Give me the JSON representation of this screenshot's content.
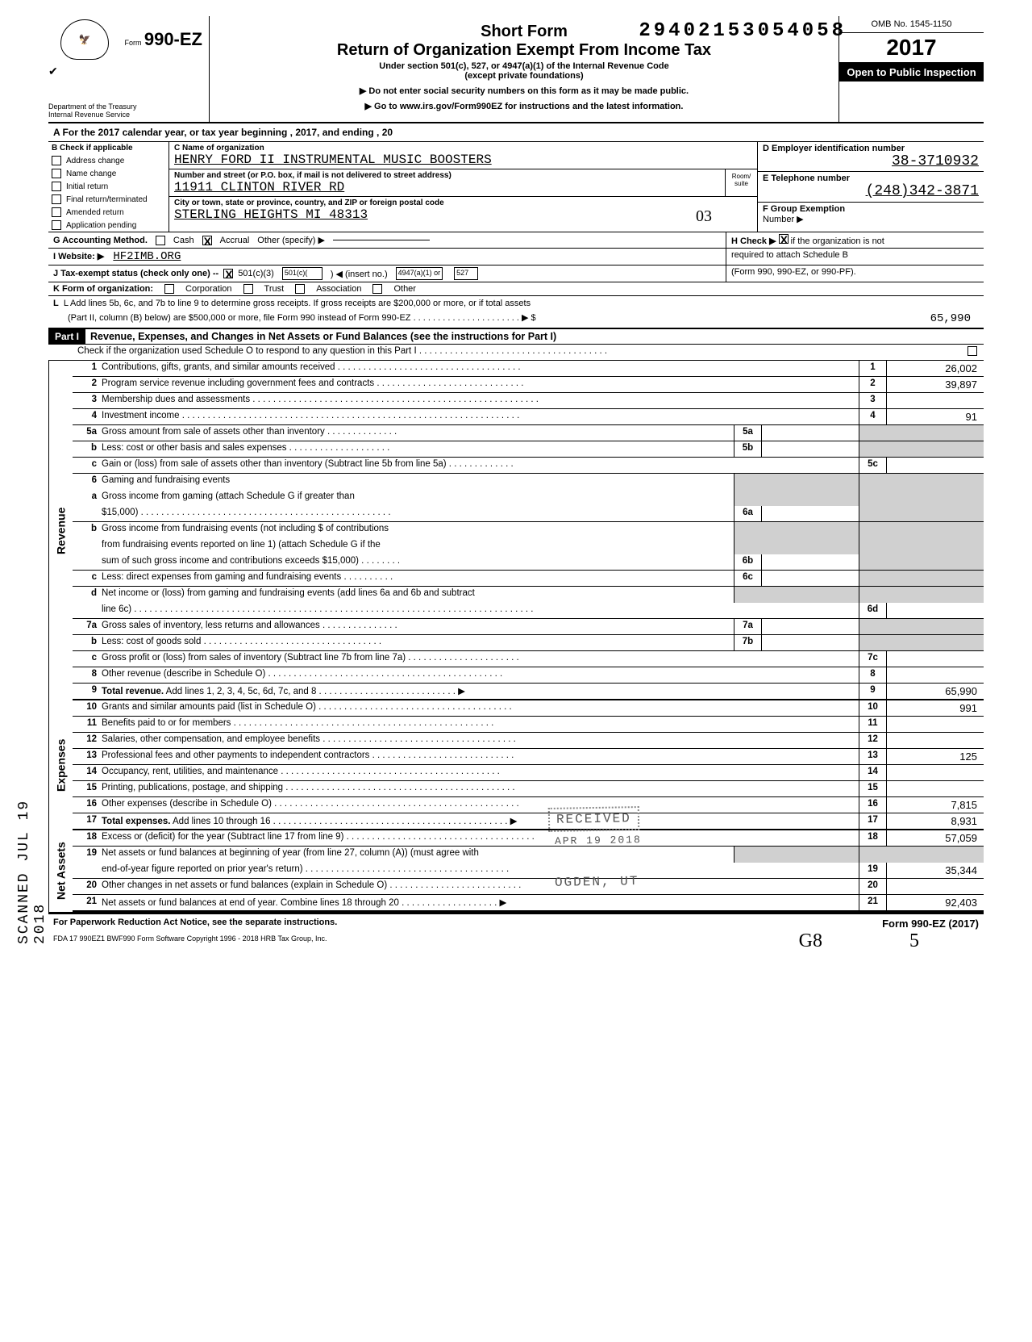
{
  "dln": "29402153054058",
  "header": {
    "form_no": "990-EZ",
    "form_prefix": "Form",
    "dept1": "Department of the Treasury",
    "dept2": "Internal Revenue Service",
    "title1": "Short Form",
    "title2": "Return of Organization Exempt From Income Tax",
    "sub": "Under section 501(c), 527, or 4947(a)(1) of the Internal Revenue Code",
    "sub2": "(except private foundations)",
    "warn1": "▶ Do not enter social security numbers on this form as it may be made public.",
    "warn2": "▶ Go to www.irs.gov/Form990EZ for instructions and the latest information.",
    "omb": "OMB No. 1545-1150",
    "year": "2017",
    "open": "Open to Public Inspection"
  },
  "lineA": "A   For the 2017 calendar year, or tax year beginning                                             , 2017, and ending                                           , 20",
  "boxB": {
    "hdr": "B  Check if applicable",
    "items": [
      "Address change",
      "Name change",
      "Initial return",
      "Final return/terminated",
      "Amended return",
      "Application pending"
    ]
  },
  "boxC": {
    "label_name": "C  Name of organization",
    "name": "HENRY FORD II INSTRUMENTAL MUSIC BOOSTERS",
    "label_addr": "Number and street (or P.O. box, if mail is not delivered to street address)",
    "room": "Room/\nsuite",
    "addr": "11911 CLINTON RIVER RD",
    "label_city": "City or town, state or province, country, and ZIP or foreign postal code",
    "city": "STERLING HEIGHTS MI 48313",
    "city_suffix": "03"
  },
  "boxD": {
    "label": "D  Employer identification number",
    "val": "38-3710932"
  },
  "boxE": {
    "label": "E  Telephone number",
    "val": "(248)342-3871"
  },
  "boxF": {
    "label": "F  Group Exemption",
    "label2": "Number  ▶"
  },
  "lineG": {
    "label": "G  Accounting Method.",
    "cash": "Cash",
    "accrual": "Accrual",
    "other": "Other (specify) ▶"
  },
  "lineH": {
    "text": "H  Check ▶",
    "text2": "if the organization is not",
    "text3": "required to attach Schedule B",
    "text4": "(Form 990, 990-EZ, or 990-PF)."
  },
  "lineI": {
    "label": "I   Website: ▶",
    "val": "HF2IMB.ORG"
  },
  "lineJ": {
    "label": "J   Tax-exempt status (check only one) --",
    "opts": [
      "501(c)(3)",
      "501(c)(",
      "4947(a)(1) or",
      "527"
    ],
    "insert": ")  ◀ (insert no.)"
  },
  "lineK": {
    "label": "K  Form of organization:",
    "opts": [
      "Corporation",
      "Trust",
      "Association",
      "Other"
    ]
  },
  "lineL": {
    "text1": "L   Add lines 5b, 6c, and 7b to line 9 to determine gross receipts. If gross receipts are $200,000 or more, or if total assets",
    "text2": "(Part II, column (B) below) are $500,000 or more, file Form 990 instead of Form 990-EZ . . . . . . . . . . . . . . . . . . . . . .  ▶   $",
    "val": "65,990"
  },
  "part1": {
    "hdr": "Part I",
    "title": "Revenue, Expenses, and Changes in Net Assets or Fund Balances (see the instructions for Part I)",
    "check_line": "Check if the organization used Schedule O to respond to any question in this Part I . . . . . . . . . . . . . . . . . . . . . . . . . . . . . . . . . . . . ."
  },
  "sections": [
    {
      "label": "Revenue",
      "lines": [
        {
          "n": "1",
          "d": "Contributions, gifts, grants, and similar amounts received . . . . . . . . . . . . . . . . . . . . . . . . . . . . . . . . . . . .",
          "en": "1",
          "ev": "26,002"
        },
        {
          "n": "2",
          "d": "Program service revenue including government fees and contracts . . . . . . . . . . . . . . . . . . . . . . . . . . . . .",
          "en": "2",
          "ev": "39,897"
        },
        {
          "n": "3",
          "d": "Membership dues and assessments . . . . . . . . . . . . . . . . . . . . . . . . . . . . . . . . . .  . . . . . . . . . . . . . . . . . . . . . .",
          "en": "3",
          "ev": ""
        },
        {
          "n": "4",
          "d": "Investment income . . . . . . . . . . . . . . . . . . . . . . . . . . . . . . . . .  . . . . . . . . .  . . . . . . . . . . . . . . . . . . . . . . . .",
          "en": "4",
          "ev": "91"
        },
        {
          "n": "5a",
          "d": "Gross amount from sale of assets other than inventory . . . . . . .  . . . . . . .",
          "mn": "5a",
          "mv": "",
          "shade_end": true
        },
        {
          "n": "b",
          "d": "Less: cost or other basis and sales expenses . . . . . . . . . . . .  . . . . . . . .",
          "mn": "5b",
          "mv": "",
          "shade_end": true
        },
        {
          "n": "c",
          "d": "Gain or (loss) from sale of assets other than inventory (Subtract line 5b from line 5a) . . .  . . . .  . . . . . .",
          "en": "5c",
          "ev": ""
        },
        {
          "n": "6",
          "d": "Gaming and fundraising events",
          "shade_end": true,
          "shade_mid": true,
          "no_border": true
        },
        {
          "n": "a",
          "d": "Gross income from gaming (attach Schedule G if greater than",
          "shade_end": true,
          "shade_mid": true,
          "no_border": true
        },
        {
          "n": "",
          "d": "$15,000) . . . . . . .  . . . .  . . . . . . . . . . . . . . . . . . . . . .  . . . . . . . . . . . . . . . .",
          "mn": "6a",
          "mv": "",
          "shade_end": true
        },
        {
          "n": "b",
          "d": "Gross income from fundraising events (not including   $                             of contributions",
          "shade_end": true,
          "shade_mid": true,
          "no_border": true
        },
        {
          "n": "",
          "d": "from fundraising events reported on line 1) (attach Schedule G if the",
          "shade_end": true,
          "shade_mid": true,
          "no_border": true
        },
        {
          "n": "",
          "d": "sum of such gross income and contributions exceeds $15,000) . . . . . . . .",
          "mn": "6b",
          "mv": "",
          "shade_end": true
        },
        {
          "n": "c",
          "d": "Less: direct expenses from gaming and fundraising events  . . . . . . . . . .",
          "mn": "6c",
          "mv": "",
          "shade_end": true
        },
        {
          "n": "d",
          "d": "Net income or (loss) from gaming and fundraising events (add lines 6a and 6b and subtract",
          "shade_end": true,
          "shade_mid": true,
          "no_border": true
        },
        {
          "n": "",
          "d": "line 6c) . . . . . . . . .  . . . .  . . . . . . . . . . . . . . . . . . . . . . . . . . . . . . . . . .  . . . . . . . . . . . . . . . . . . . . . . . . . . . . . . .",
          "en": "6d",
          "ev": ""
        },
        {
          "n": "7a",
          "d": "Gross sales of inventory, less returns and allowances . . . . . . . . . . . . . . .",
          "mn": "7a",
          "mv": "",
          "shade_end": true
        },
        {
          "n": "b",
          "d": "Less: cost of goods sold . . . . .  . . . .  . . .  . . . . . . .  . . . . . . . . .  . . . . . . .",
          "mn": "7b",
          "mv": "",
          "shade_end": true
        },
        {
          "n": "c",
          "d": "Gross profit or (loss) from sales of inventory (Subtract line 7b from line 7a) . . .  . . . . . . . . . . . . . . . .  . . .",
          "en": "7c",
          "ev": ""
        },
        {
          "n": "8",
          "d": "Other revenue (describe in Schedule O)  . . . . . .   . . .  . . . .  . . . .   . . . . . .  . . . . . .  . . . . . . . . . . . . . . . . .",
          "en": "8",
          "ev": ""
        },
        {
          "n": "9",
          "d": "Total revenue. Add lines 1, 2, 3, 4, 5c, 6d, 7c, and 8 . . .  . . . . . . .   . . .  . . . . . .  . . .  . . . . .  ▶",
          "en": "9",
          "ev": "65,990",
          "bold": true,
          "thick": true
        }
      ]
    },
    {
      "label": "Expenses",
      "lines": [
        {
          "n": "10",
          "d": "Grants and similar amounts paid (list in Schedule O) . . . . . .  . . . . . .  . . . . . . . . . . . . . . . . . . . . . . . . . .",
          "en": "10",
          "ev": "991"
        },
        {
          "n": "11",
          "d": "Benefits paid to or for members . . .  . . .  . . . .  . . .  . . . .   . .  . . . . . . . . . . . . . . . . . . . . . . . . . . . . . . . .",
          "en": "11",
          "ev": ""
        },
        {
          "n": "12",
          "d": "Salaries, other compensation, and employee benefits . . . . . . . . . . . . . . . . . . . . . . . . . . . . . . . . . . . . . .",
          "en": "12",
          "ev": ""
        },
        {
          "n": "13",
          "d": "Professional fees and other payments to independent contractors . . . . . . . . . . . . . . . . . . . . . . . . . . . .",
          "en": "13",
          "ev": "125"
        },
        {
          "n": "14",
          "d": "Occupancy, rent, utilities, and maintenance   . . . . . . . . . .  . . . . . . . . . . . . . . . . . . . . . . . . . . . . . . . . .",
          "en": "14",
          "ev": ""
        },
        {
          "n": "15",
          "d": "Printing, publications, postage, and shipping . . . . . . . . . . . . . . . . . . . . . . . . . . . . . . . . . . . . . . . . . . . . .",
          "en": "15",
          "ev": ""
        },
        {
          "n": "16",
          "d": "Other expenses (describe in Schedule O) . . . . . . . . . . . . . . . . . . . . . . . . . . . . . . . . . . . . . . . . . . . . . . . .",
          "en": "16",
          "ev": "7,815"
        },
        {
          "n": "17",
          "d": "Total expenses. Add lines 10 through 16 . . . . . . . . . . . . . . . . . . . . . . . . . . . . . . .  . . . . . . . . . . . . . . .  ▶",
          "en": "17",
          "ev": "8,931",
          "bold": true,
          "thick": true
        }
      ]
    },
    {
      "label": "Net Assets",
      "lines": [
        {
          "n": "18",
          "d": "Excess or (deficit) for the year (Subtract line 17 from line 9) . . . . .  . . . . . . . . . . . . . . . . . . . . . . . . . . . . . . . .",
          "en": "18",
          "ev": "57,059"
        },
        {
          "n": "19",
          "d": "Net assets or fund balances at beginning of year (from line 27, column (A)) (must agree with",
          "shade_end": true,
          "shade_mid": true,
          "no_border": true
        },
        {
          "n": "",
          "d": "end-of-year figure reported on prior year's return) . . . . . . . . . . .  . . . . . .  . . . . . . . . . . . . . . . . . . . . . . .",
          "en": "19",
          "ev": "35,344"
        },
        {
          "n": "20",
          "d": "Other changes in net assets or fund balances (explain in Schedule O)  . . . .  . . . . . . . . . . . . . . . . . . . . . .",
          "en": "20",
          "ev": ""
        },
        {
          "n": "21",
          "d": "Net assets or fund balances at end of year. Combine lines 18 through 20 . . . . . . . . . .  . . . . . . . . .  ▶",
          "en": "21",
          "ev": "92,403",
          "thick": true
        }
      ]
    }
  ],
  "footer": {
    "left": "For Paperwork Reduction Act Notice, see the separate instructions.",
    "mid": "FDA       17   990EZ1         BWF990        Form Software Copyright 1996 - 2018 HRB Tax Group, Inc.",
    "right": "Form 990-EZ (2017)"
  },
  "stamps": {
    "received": "RECEIVED",
    "date": "APR 19 2018",
    "ogden": "OGDEN, UT",
    "scanned": "SCANNED JUL 19 2018",
    "hand1": "G8",
    "hand2": "5"
  }
}
